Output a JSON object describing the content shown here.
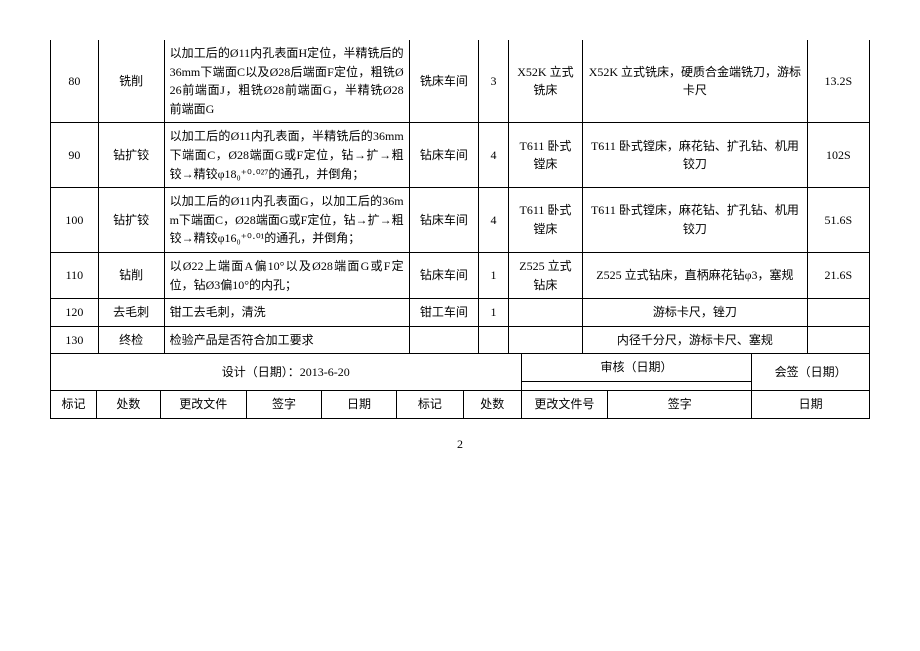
{
  "rows": [
    {
      "no": "80",
      "name": "铣削",
      "desc": "以加工后的Ø11内孔表面H定位，半精铣后的36mm下端面C以及Ø28后端面F定位，粗铣Ø26前端面J，粗铣Ø28前端面G，半精铣Ø28前端面G",
      "workshop": "铣床车间",
      "qty": "3",
      "equip": "X52K 立式铣床",
      "tool": "X52K 立式铣床，硬质合金端铣刀，游标卡尺",
      "time": "13.2S"
    },
    {
      "no": "90",
      "name": "钻扩铰",
      "desc": "以加工后的Ø11内孔表面，半精铣后的36mm下端面C，Ø28端面G或F定位，钻→扩→粗铰→精铰φ18₀⁺⁰·⁰²⁷的通孔，并倒角；",
      "workshop": "钻床车间",
      "qty": "4",
      "equip": "T611 卧式镗床",
      "tool": "T611 卧式镗床，麻花钻、扩孔钻、机用铰刀",
      "time": "102S"
    },
    {
      "no": "100",
      "name": "钻扩铰",
      "desc": "以加工后的Ø11内孔表面G，以加工后的36mm下端面C，Ø28端面G或F定位，钻→扩→粗铰→精铰φ16₀⁺⁰·⁰¹的通孔，并倒角；",
      "workshop": "钻床车间",
      "qty": "4",
      "equip": "T611 卧式镗床",
      "tool": "T611 卧式镗床，麻花钻、扩孔钻、机用铰刀",
      "time": "51.6S"
    },
    {
      "no": "110",
      "name": "钻削",
      "desc": "以Ø22上端面A偏10°以及Ø28端面G或F定位，钻Ø3偏10°的内孔；",
      "workshop": "钻床车间",
      "qty": "1",
      "equip": "Z525 立式钻床",
      "tool": "Z525 立式钻床，直柄麻花钻φ3，塞规",
      "time": "21.6S"
    },
    {
      "no": "120",
      "name": "去毛刺",
      "desc": "钳工去毛刺，清洗",
      "workshop": "钳工车间",
      "qty": "1",
      "equip": "",
      "tool": "游标卡尺，锉刀",
      "time": ""
    },
    {
      "no": "130",
      "name": "终检",
      "desc": "检验产品是否符合加工要求",
      "workshop": "",
      "qty": "",
      "equip": "",
      "tool": "内径千分尺，游标卡尺、塞规",
      "time": ""
    }
  ],
  "footer": {
    "design": "设计（日期）：2013-6-20",
    "audit": "审核（日期）",
    "cosign": "会签（日期）",
    "mark": "标记",
    "places": "处数",
    "changefile": "更改文件",
    "sign": "签字",
    "date": "日期",
    "mark2": "标记",
    "places2": "处数",
    "changefileno": "更改文件号",
    "sign2": "签字",
    "date2": "日期"
  },
  "pagenum": "2",
  "colwidths": {
    "c1": "40px",
    "c2": "55px",
    "c3": "205px",
    "c4": "58px",
    "c5": "25px",
    "c6": "62px",
    "c7": "188px",
    "c8": "52px"
  }
}
